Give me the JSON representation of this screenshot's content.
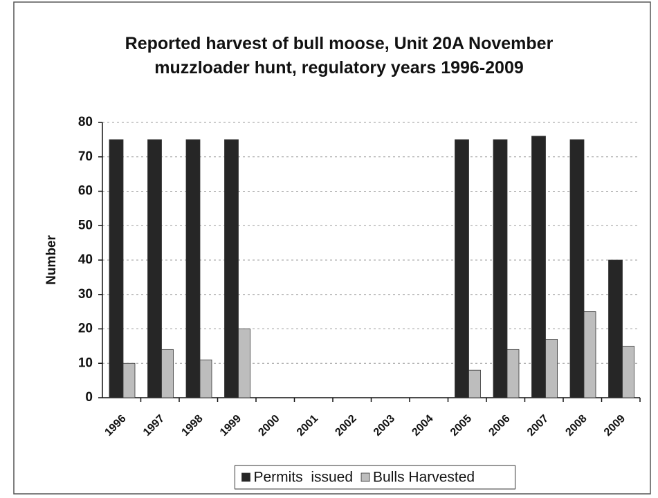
{
  "chart_data": {
    "type": "bar",
    "title": "Reported harvest of bull moose, Unit 20A November muzzloader hunt, regulatory years 1996-2009",
    "y_label": "Number",
    "categories": [
      "1996",
      "1997",
      "1998",
      "1999",
      "2000",
      "2001",
      "2002",
      "2003",
      "2004",
      "2005",
      "2006",
      "2007",
      "2008",
      "2009"
    ],
    "series": [
      {
        "name": "Permits  issued",
        "color": "#262626",
        "values": [
          75,
          75,
          75,
          75,
          0,
          0,
          0,
          0,
          0,
          75,
          75,
          76,
          75,
          40
        ]
      },
      {
        "name": "Bulls Harvested",
        "color": "#bdbdbd",
        "values": [
          10,
          14,
          11,
          20,
          0,
          0,
          0,
          0,
          0,
          8,
          14,
          17,
          25,
          15
        ]
      }
    ],
    "ylim": [
      0,
      80
    ],
    "yticks": [
      0,
      10,
      20,
      30,
      40,
      50,
      60,
      70,
      80
    ],
    "grid": true,
    "legend": "bottom"
  }
}
